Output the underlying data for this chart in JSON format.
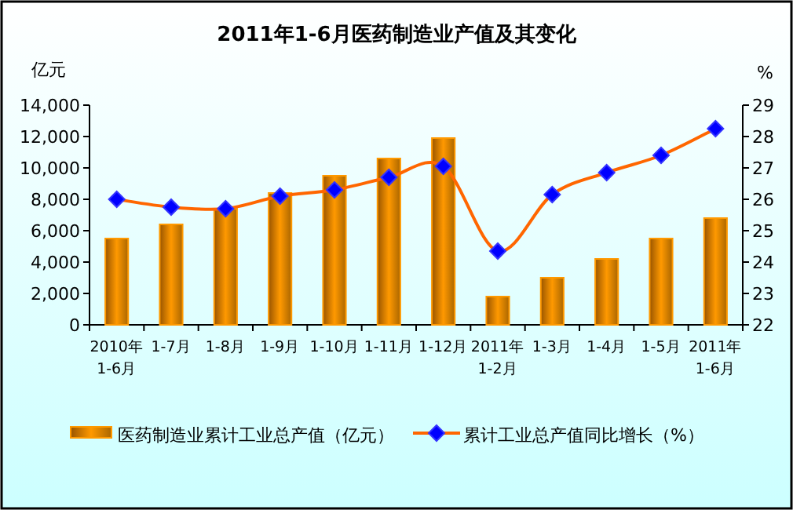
{
  "chart_data": {
    "type": "bar",
    "title": "2011年1-6月医药制造业产值及其变化",
    "ylabel": "亿元",
    "y2label": "%",
    "categories": [
      "2010年\n1-6月",
      "1-7月",
      "1-8月",
      "1-9月",
      "1-10月",
      "1-11月",
      "1-12月",
      "2011年\n1-2月",
      "1-3月",
      "1-4月",
      "1-5月",
      "2011年\n1-6月"
    ],
    "series": [
      {
        "name": "医药制造业累计工业总产值（亿元）",
        "color": "#ff9900",
        "values": [
          5500,
          6400,
          7400,
          8400,
          9500,
          10600,
          11900,
          1800,
          3000,
          4200,
          5500,
          6800
        ]
      },
      {
        "name": "累计工业总产值同比增长（%）",
        "type": "line",
        "axis": "y2",
        "color": "#ff6600",
        "marker": "diamond",
        "values": [
          26.0,
          25.75,
          25.7,
          26.1,
          26.3,
          26.7,
          27.05,
          24.35,
          26.15,
          26.85,
          27.4,
          28.25
        ]
      }
    ],
    "ylim": [
      0,
      14000
    ],
    "yticks": [
      {
        "value": 0,
        "label": "0"
      },
      {
        "value": 2000,
        "label": "2,000"
      },
      {
        "value": 4000,
        "label": "4,000"
      },
      {
        "value": 6000,
        "label": "6,000"
      },
      {
        "value": 8000,
        "label": "8,000"
      },
      {
        "value": 10000,
        "label": "10,000"
      },
      {
        "value": 12000,
        "label": "12,000"
      },
      {
        "value": 14000,
        "label": "14,000"
      }
    ],
    "y2lim": [
      22,
      29
    ],
    "y2ticks": [
      22,
      23,
      24,
      25,
      26,
      27,
      28,
      29
    ],
    "grid": false,
    "legend": "bottom"
  }
}
